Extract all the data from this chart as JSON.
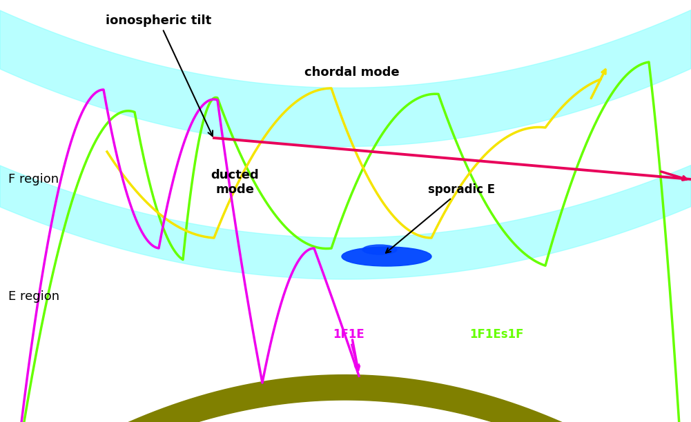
{
  "bg_color": "#ffffff",
  "earth_color": "#808000",
  "band_color": "#7fffff",
  "band_alpha": 0.55,
  "chordal_color": "#e8005a",
  "ducted_color": "#f5e400",
  "magenta_color": "#ee00ee",
  "green_color": "#66ff00",
  "sporadic_E_color": "#0044ff",
  "labels": {
    "F_region": "F region",
    "E_region": "E region",
    "chordal_mode": "chordal mode",
    "ducted_mode": "ducted\nmode",
    "sporadic_E": "sporadic E",
    "ionospheric_tilt": "ionospheric tilt",
    "1F1E": "1F1E",
    "1F1Es1F": "1F1Es1F"
  },
  "figsize": [
    10.01,
    6.12
  ],
  "dpi": 100
}
